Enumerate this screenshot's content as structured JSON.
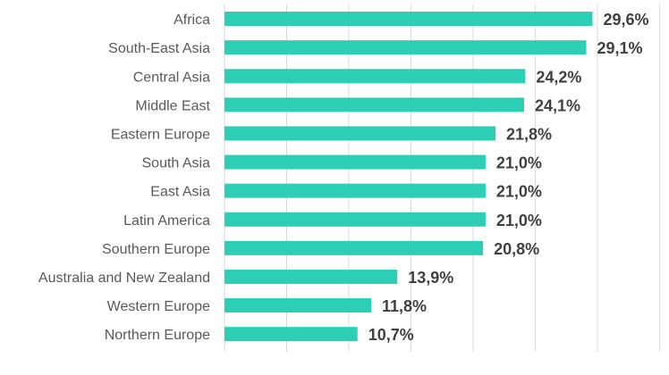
{
  "chart_data": {
    "type": "bar",
    "orientation": "horizontal",
    "categories": [
      "Africa",
      "South-East Asia",
      "Central Asia ",
      "Middle East",
      "Eastern Europe",
      "South Asia",
      "East Asia",
      "Latin America",
      "Southern Europe",
      "Australia and New Zealand",
      "Western Europe",
      "Northern Europe"
    ],
    "values": [
      29.6,
      29.1,
      24.2,
      24.1,
      21.8,
      21.0,
      21.0,
      21.0,
      20.8,
      13.9,
      11.8,
      10.7
    ],
    "value_labels": [
      "29,6%",
      "29,1%",
      "24,2%",
      "24,1%",
      "21,8%",
      "21,0%",
      "21,0%",
      "21,0%",
      "20,8%",
      "13,9%",
      "11,8%",
      "10,7%"
    ],
    "xlim": [
      0,
      35
    ],
    "x_gridlines": [
      0,
      5,
      10,
      15,
      20,
      25,
      30,
      35
    ],
    "grid": true,
    "legend": "none",
    "bar_color": "#2ccfb3"
  }
}
